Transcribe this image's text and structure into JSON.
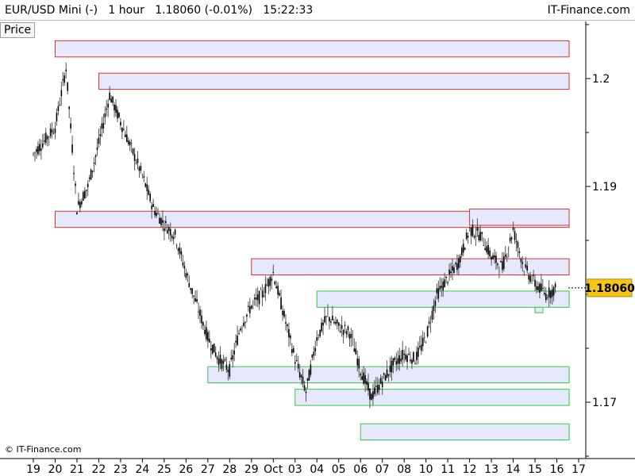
{
  "header": {
    "symbol": "EUR/USD Mini (-)",
    "timeframe": "1 hour",
    "last": "1.18060 (-0.01%)",
    "time": "15:22:33",
    "brand": "IT-Finance.com"
  },
  "panel_label": "Price",
  "copyright": "© IT-Finance.com",
  "chart_data": {
    "type": "candlestick",
    "y_ticks": [
      "1.2",
      "1.19",
      "1.17"
    ],
    "y_ticks_values": [
      1.2,
      1.19,
      1.17
    ],
    "x_ticks": [
      "19",
      "20",
      "21",
      "22",
      "23",
      "24",
      "25",
      "26",
      "27",
      "28",
      "29",
      "Oct",
      "03",
      "04",
      "05",
      "06",
      "07",
      "08",
      "10",
      "11",
      "12",
      "13",
      "14",
      "15",
      "16",
      "17"
    ],
    "last_price": "1.18060",
    "last_price_value": 1.1806,
    "colors": {
      "resistance": "#e03030",
      "support": "#2ecc40",
      "zone_fill": "#e6e9fb",
      "last_price_bg": "#f5c518"
    },
    "zones": [
      {
        "kind": "resistance",
        "from": "20",
        "low": 1.202,
        "high": 1.2035
      },
      {
        "kind": "resistance",
        "from": "22",
        "low": 1.199,
        "high": 1.2005
      },
      {
        "kind": "resistance",
        "from": "20",
        "low": 1.1862,
        "high": 1.1877
      },
      {
        "kind": "resistance",
        "from": "12",
        "low": 1.1864,
        "high": 1.1879
      },
      {
        "kind": "resistance",
        "from": "29",
        "low": 1.1818,
        "high": 1.1833
      },
      {
        "kind": "support",
        "from": "04",
        "low": 1.1788,
        "high": 1.1803
      },
      {
        "kind": "support",
        "from": "15",
        "low": 1.1783,
        "high": 1.1788
      },
      {
        "kind": "support",
        "from": "27",
        "low": 1.1718,
        "high": 1.1733
      },
      {
        "kind": "support",
        "from": "03",
        "low": 1.1697,
        "high": 1.1712
      },
      {
        "kind": "support",
        "from": "06",
        "low": 1.1665,
        "high": 1.168
      }
    ],
    "close_path": [
      [
        "19",
        1.193
      ],
      [
        "20",
        1.1955
      ],
      [
        "20.5",
        1.201
      ],
      [
        "21",
        1.188
      ],
      [
        "21.5",
        1.19
      ],
      [
        "22",
        1.194
      ],
      [
        "22.5",
        1.1985
      ],
      [
        "23",
        1.196
      ],
      [
        "23.5",
        1.1935
      ],
      [
        "24",
        1.191
      ],
      [
        "24.5",
        1.188
      ],
      [
        "25",
        1.1865
      ],
      [
        "25.5",
        1.1855
      ],
      [
        "26",
        1.182
      ],
      [
        "26.5",
        1.179
      ],
      [
        "27",
        1.176
      ],
      [
        "27.5",
        1.174
      ],
      [
        "28",
        1.173
      ],
      [
        "28.5",
        1.177
      ],
      [
        "29",
        1.179
      ],
      [
        "29.5",
        1.18
      ],
      [
        "Oct",
        1.182
      ],
      [
        "Oct.5",
        1.178
      ],
      [
        "03",
        1.174
      ],
      [
        "03.5",
        1.171
      ],
      [
        "04",
        1.176
      ],
      [
        "04.5",
        1.178
      ],
      [
        "05",
        1.177
      ],
      [
        "05.5",
        1.1765
      ],
      [
        "06",
        1.173
      ],
      [
        "06.5",
        1.1705
      ],
      [
        "07",
        1.172
      ],
      [
        "07.5",
        1.1735
      ],
      [
        "08",
        1.1745
      ],
      [
        "08.5",
        1.174
      ],
      [
        "10",
        1.176
      ],
      [
        "10.5",
        1.18
      ],
      [
        "11",
        1.1815
      ],
      [
        "11.5",
        1.183
      ],
      [
        "12",
        1.186
      ],
      [
        "12.5",
        1.1855
      ],
      [
        "13",
        1.1835
      ],
      [
        "13.5",
        1.1825
      ],
      [
        "14",
        1.186
      ],
      [
        "14.5",
        1.1825
      ],
      [
        "15",
        1.181
      ],
      [
        "15.5",
        1.18
      ],
      [
        "16",
        1.1806
      ]
    ]
  }
}
